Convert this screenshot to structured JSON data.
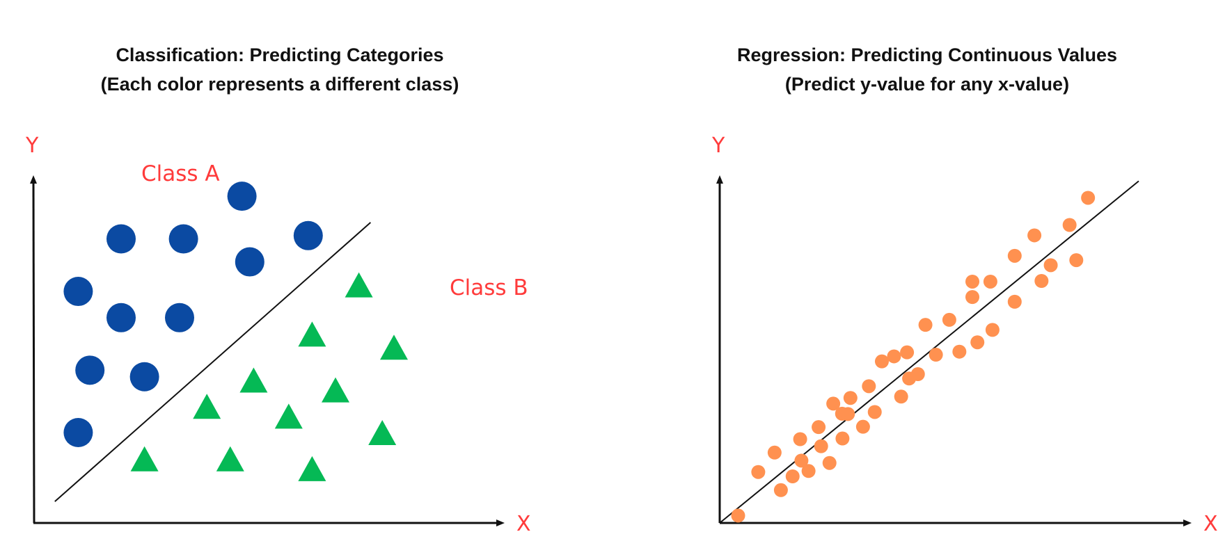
{
  "colors": {
    "class_a": "#0b4aa2",
    "class_b": "#05b955",
    "points": "#ff9150",
    "label": "#ff3b3b",
    "axis": "#111111"
  },
  "left": {
    "title_line1": "Classification: Predicting Categories",
    "title_line2": "(Each color represents a different class)",
    "y_label": "Y",
    "x_label": "X",
    "class_a_label": "Class A",
    "class_b_label": "Class B"
  },
  "right": {
    "title_line1": "Regression: Predicting Continuous Values",
    "title_line2": "(Predict y-value for any x-value)",
    "y_label": "Y",
    "x_label": "X"
  },
  "chart_data": [
    {
      "type": "scatter",
      "title": "Classification: Predicting Categories (Each color represents a different class)",
      "xlabel": "X",
      "ylabel": "Y",
      "xlim": [
        0,
        100
      ],
      "ylim": [
        0,
        100
      ],
      "series": [
        {
          "name": "Class A",
          "marker": "circle",
          "points": [
            [
              20,
              84
            ],
            [
              36,
              84
            ],
            [
              51,
              97
            ],
            [
              68,
              85
            ],
            [
              53,
              77
            ],
            [
              9,
              68
            ],
            [
              20,
              60
            ],
            [
              35,
              60
            ],
            [
              12,
              44
            ],
            [
              26,
              42
            ],
            [
              9,
              25
            ]
          ]
        },
        {
          "name": "Class B",
          "marker": "triangle",
          "points": [
            [
              81,
              70
            ],
            [
              69,
              55
            ],
            [
              90,
              51
            ],
            [
              54,
              41
            ],
            [
              75,
              38
            ],
            [
              42,
              33
            ],
            [
              63,
              30
            ],
            [
              87,
              25
            ],
            [
              26,
              17
            ],
            [
              48,
              17
            ],
            [
              69,
              14
            ]
          ]
        }
      ],
      "boundary": [
        [
          3,
          4
        ],
        [
          84,
          89
        ]
      ]
    },
    {
      "type": "scatter",
      "title": "Regression: Predicting Continuous Values (Predict y-value for any x-value)",
      "xlabel": "X",
      "ylabel": "Y",
      "xlim": [
        0,
        100
      ],
      "ylim": [
        0,
        100
      ],
      "points": [
        [
          4.4,
          2.2
        ],
        [
          9.2,
          15.2
        ],
        [
          13.1,
          21.0
        ],
        [
          14.6,
          9.8
        ],
        [
          17.4,
          13.9
        ],
        [
          19.2,
          25.0
        ],
        [
          19.5,
          18.6
        ],
        [
          21.2,
          15.5
        ],
        [
          23.6,
          28.6
        ],
        [
          24.2,
          22.9
        ],
        [
          26.2,
          17.9
        ],
        [
          27.1,
          35.6
        ],
        [
          29.2,
          32.6
        ],
        [
          29.3,
          25.2
        ],
        [
          30.6,
          32.5
        ],
        [
          31.2,
          37.3
        ],
        [
          34.2,
          28.7
        ],
        [
          35.6,
          40.8
        ],
        [
          37.0,
          33.1
        ],
        [
          38.7,
          48.2
        ],
        [
          41.6,
          49.7
        ],
        [
          43.3,
          37.7
        ],
        [
          44.7,
          50.9
        ],
        [
          45.2,
          43.1
        ],
        [
          47.3,
          44.4
        ],
        [
          49.1,
          59.1
        ],
        [
          51.6,
          50.2
        ],
        [
          54.8,
          60.6
        ],
        [
          57.2,
          51.1
        ],
        [
          60.3,
          67.4
        ],
        [
          60.3,
          72.0
        ],
        [
          61.5,
          53.9
        ],
        [
          64.6,
          72.0
        ],
        [
          65.1,
          57.6
        ],
        [
          70.4,
          66.0
        ],
        [
          70.4,
          79.7
        ],
        [
          75.1,
          85.8
        ],
        [
          76.8,
          72.2
        ],
        [
          79.0,
          76.9
        ],
        [
          83.5,
          88.9
        ],
        [
          85.1,
          78.4
        ],
        [
          87.9,
          97.0
        ]
      ],
      "trend_line": [
        [
          0,
          0
        ],
        [
          100,
          102
        ]
      ]
    }
  ]
}
